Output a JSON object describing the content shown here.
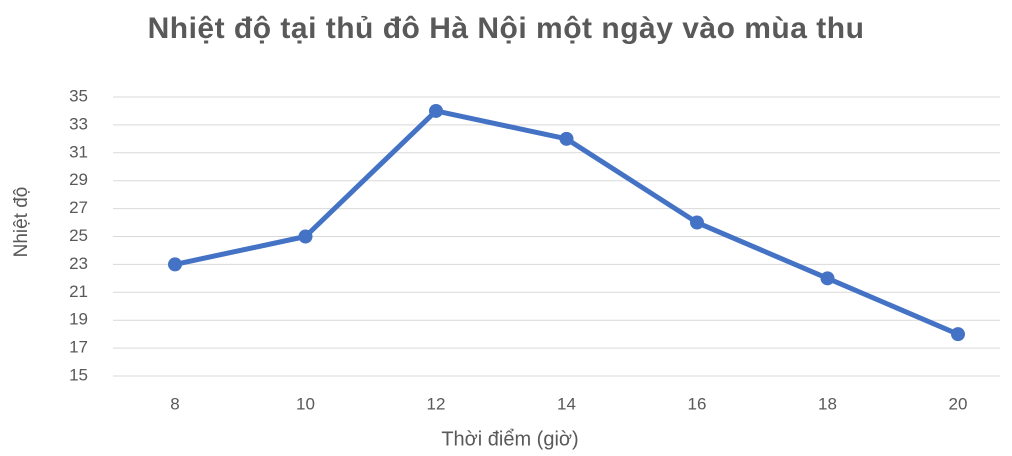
{
  "chart_data": {
    "type": "line",
    "title": "Nhiệt độ tại thủ đô Hà Nội một ngày vào mùa thu",
    "x_label": "Thời điểm (giờ)",
    "y_label": "Nhiệt độ",
    "categories": [
      "8",
      "10",
      "12",
      "14",
      "16",
      "18",
      "20"
    ],
    "series": [
      {
        "name": "Nhiệt độ",
        "color": "#4472c4",
        "values": [
          23,
          25,
          34,
          32,
          26,
          22,
          18
        ]
      }
    ],
    "ylim": [
      15,
      35
    ],
    "yticks": [
      15,
      17,
      19,
      21,
      23,
      25,
      27,
      29,
      31,
      33,
      35
    ],
    "grid": true
  }
}
